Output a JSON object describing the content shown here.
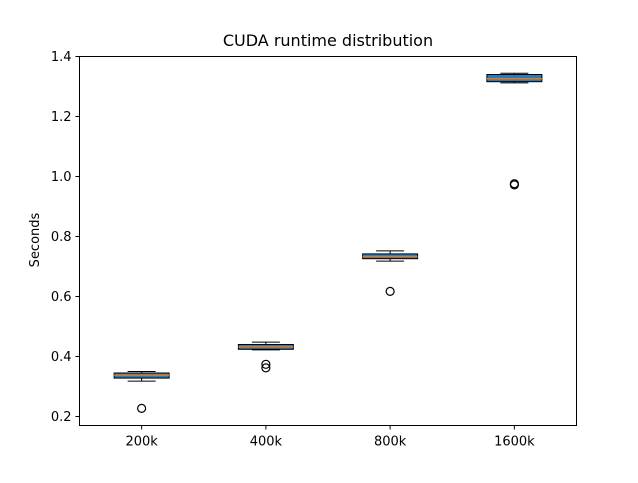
{
  "chart_data": {
    "type": "box",
    "title": "CUDA runtime distribution",
    "xlabel": "",
    "ylabel": "Seconds",
    "categories": [
      "200k",
      "400k",
      "800k",
      "1600k"
    ],
    "ylim": [
      0.17,
      1.4
    ],
    "yticks": [
      0.2,
      0.4,
      0.6,
      0.8,
      1.0,
      1.2,
      1.4
    ],
    "ytick_labels": [
      "0.2",
      "0.4",
      "0.6",
      "0.8",
      "1.0",
      "1.2",
      "1.4"
    ],
    "grid": false,
    "series": [
      {
        "category": "200k",
        "whisker_low": 0.318,
        "q1": 0.328,
        "median": 0.338,
        "q3": 0.345,
        "whisker_high": 0.35,
        "outliers": [
          0.227
        ]
      },
      {
        "category": "400k",
        "whisker_low": 0.422,
        "q1": 0.424,
        "median": 0.432,
        "q3": 0.44,
        "whisker_high": 0.448,
        "outliers": [
          0.374,
          0.362
        ]
      },
      {
        "category": "800k",
        "whisker_low": 0.718,
        "q1": 0.726,
        "median": 0.733,
        "q3": 0.742,
        "whisker_high": 0.752,
        "outliers": [
          0.617
        ]
      },
      {
        "category": "1600k",
        "whisker_low": 1.312,
        "q1": 1.316,
        "median": 1.326,
        "q3": 1.34,
        "whisker_high": 1.344,
        "outliers": [
          0.972,
          0.976
        ]
      }
    ],
    "colors": {
      "box_fill": "#2b7bba",
      "median": "#e07b1f",
      "edge": "#000000"
    }
  }
}
